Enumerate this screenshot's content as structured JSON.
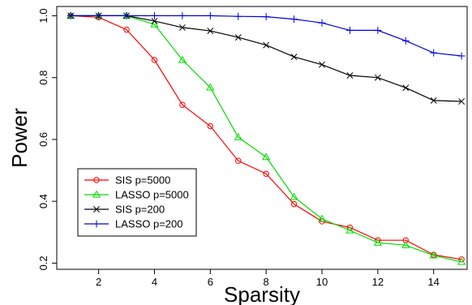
{
  "chart_data": {
    "type": "line",
    "title": "",
    "xlabel": "Sparsity",
    "ylabel": "Power",
    "xlim": [
      0.5,
      15.2
    ],
    "ylim": [
      0.18,
      1.03
    ],
    "xticks": [
      2,
      4,
      6,
      8,
      10,
      12,
      14
    ],
    "yticks": [
      0.2,
      0.4,
      0.6,
      0.8,
      1.0
    ],
    "ytick_labels": [
      "0.2",
      "0.4",
      "0.6",
      "0.8",
      "1.0"
    ],
    "grid": false,
    "legend_position": "bottom-left",
    "x": [
      1,
      2,
      3,
      4,
      5,
      6,
      7,
      8,
      9,
      10,
      11,
      12,
      13,
      14,
      15
    ],
    "series": [
      {
        "name": "SIS p=5000",
        "color": "#ff0000",
        "marker": "circle",
        "values": [
          1.0,
          0.995,
          0.955,
          0.857,
          0.712,
          0.643,
          0.531,
          0.489,
          0.391,
          0.335,
          0.315,
          0.274,
          0.274,
          0.227,
          0.212
        ]
      },
      {
        "name": "LASSO p=5000",
        "color": "#00dd00",
        "marker": "triangle",
        "values": [
          1.0,
          1.0,
          1.0,
          0.972,
          0.857,
          0.768,
          0.607,
          0.543,
          0.414,
          0.343,
          0.306,
          0.266,
          0.258,
          0.225,
          0.204
        ]
      },
      {
        "name": "SIS p=200",
        "color": "#000000",
        "marker": "x",
        "values": [
          1.0,
          1.0,
          1.0,
          0.983,
          0.962,
          0.951,
          0.93,
          0.905,
          0.867,
          0.842,
          0.807,
          0.8,
          0.767,
          0.726,
          0.723
        ]
      },
      {
        "name": "LASSO p=200",
        "color": "#0000dd",
        "marker": "plus",
        "values": [
          1.0,
          1.0,
          1.0,
          1.0,
          1.0,
          1.0,
          0.998,
          0.997,
          0.989,
          0.977,
          0.953,
          0.953,
          0.919,
          0.88,
          0.87
        ]
      }
    ]
  }
}
